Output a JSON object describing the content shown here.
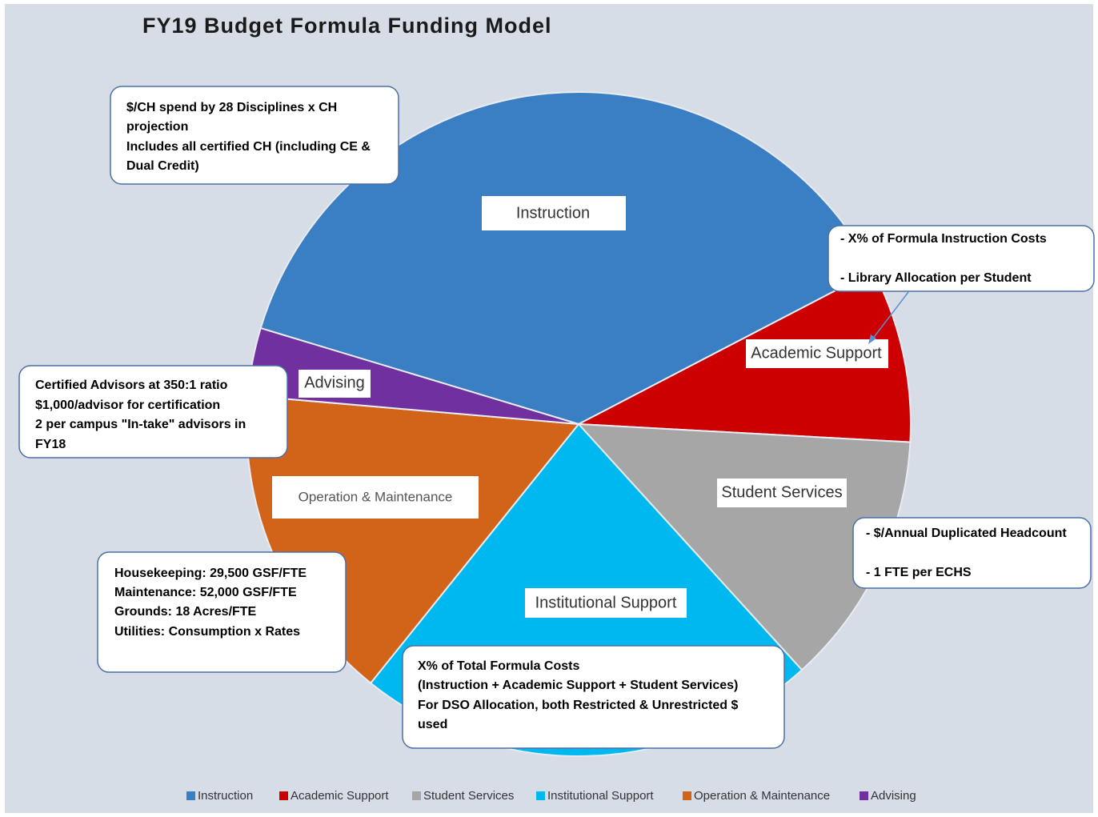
{
  "chart_data": {
    "type": "pie",
    "title": "FY19 Budget Formula Funding Model",
    "categories": [
      "Instruction",
      "Academic Support",
      "Student Services",
      "Institutional Support",
      "Operation & Maintenance",
      "Advising"
    ],
    "values": [
      37.7,
      8.5,
      12.4,
      22.5,
      15.6,
      3.3
    ],
    "colors": [
      "#3a7fc4",
      "#cc0000",
      "#a6a6a6",
      "#00b8f0",
      "#d2641a",
      "#7030a0"
    ],
    "annotations": [
      {
        "lines": [
          "$/CH spend by 28 Disciplines x CH",
          "projection",
          "Includes all certified CH (including CE &",
          "Dual Credit)"
        ]
      },
      {
        "lines": [
          "- X% of Formula Instruction Costs",
          "- Library Allocation per Student"
        ]
      },
      {
        "lines": [
          "Certified Advisors at 350:1 ratio",
          "$1,000/advisor for certification",
          "2 per campus \"In-take\" advisors in",
          "FY18"
        ]
      },
      {
        "lines": [
          "- $/Annual Duplicated Headcount",
          "- 1 FTE per ECHS"
        ]
      },
      {
        "lines": [
          "Housekeeping: 29,500 GSF/FTE",
          "Maintenance: 52,000 GSF/FTE",
          "Grounds: 18 Acres/FTE",
          "Utilities: Consumption x Rates"
        ]
      },
      {
        "lines": [
          "X% of Total Formula Costs",
          "(Instruction + Academic Support + Student Services)",
          "For DSO Allocation, both Restricted & Unrestricted $",
          "used"
        ]
      }
    ]
  }
}
